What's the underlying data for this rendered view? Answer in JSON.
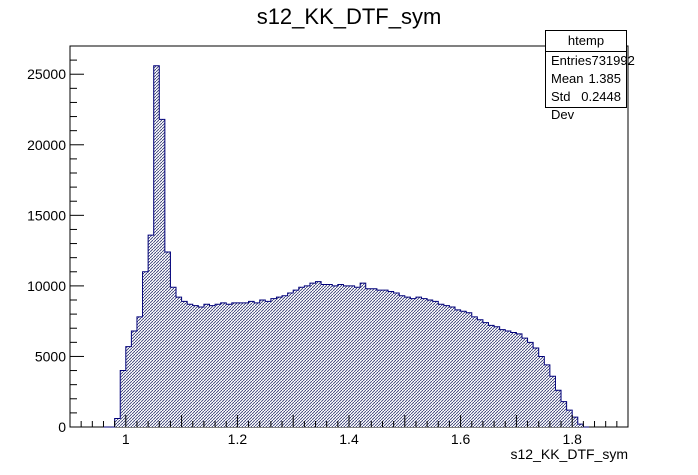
{
  "chart_data": {
    "type": "bar",
    "title": "s12_KK_DTF_sym",
    "xlabel": "s12_KK_DTF_sym",
    "ylabel": "",
    "xlim": [
      0.9,
      1.9
    ],
    "ylim": [
      0,
      27000
    ],
    "bin_start": 0.96,
    "bin_width": 0.01,
    "x_ticks": [
      "1",
      "1.2",
      "1.4",
      "1.6",
      "1.8"
    ],
    "y_ticks": [
      "0",
      "5000",
      "10000",
      "15000",
      "20000",
      "25000"
    ],
    "grid": false,
    "legend": "none",
    "fill_color": "#8a8fb0",
    "line_color": "#00007a",
    "values": [
      0,
      0,
      600,
      4000,
      5700,
      6800,
      7800,
      11000,
      13600,
      25600,
      21800,
      12400,
      9900,
      9200,
      8900,
      8700,
      8600,
      8500,
      8700,
      8600,
      8700,
      8800,
      8700,
      8800,
      8800,
      8800,
      8900,
      8800,
      9000,
      8900,
      9100,
      9200,
      9300,
      9500,
      9700,
      9900,
      10000,
      10200,
      10300,
      10100,
      10100,
      10000,
      10100,
      10000,
      10000,
      9900,
      10200,
      9800,
      9800,
      9700,
      9700,
      9600,
      9500,
      9300,
      9200,
      9100,
      9200,
      9100,
      9000,
      8900,
      8700,
      8600,
      8500,
      8300,
      8200,
      8100,
      7800,
      7600,
      7400,
      7200,
      7100,
      6900,
      6800,
      6700,
      6600,
      6300,
      6000,
      5600,
      5000,
      4400,
      3600,
      2600,
      1800,
      1200,
      700,
      200,
      0
    ]
  },
  "statbox": {
    "name": "htemp",
    "rows": [
      {
        "label": "Entries",
        "value": "731992"
      },
      {
        "label": "Mean",
        "value": "1.385"
      },
      {
        "label": "Std Dev",
        "value": "0.2448"
      }
    ]
  }
}
